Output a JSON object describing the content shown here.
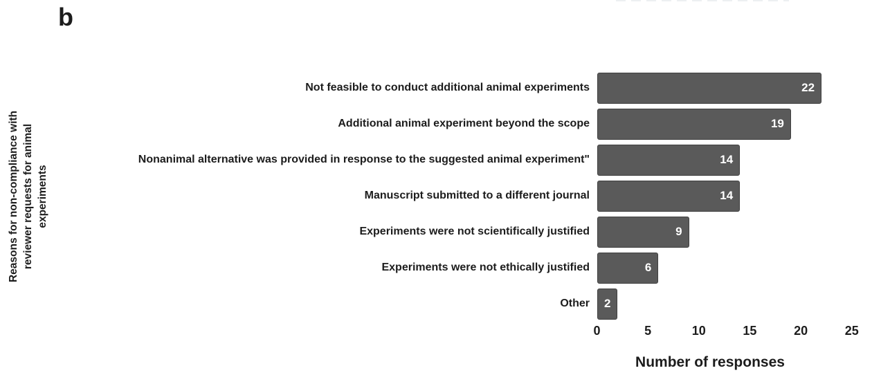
{
  "panel_label": "b",
  "colors": {
    "background": "#ffffff",
    "bar_fill": "#5a5a5a",
    "bar_border": "#3f3f3f",
    "text": "#1c1c1c",
    "value_label_text": "#ffffff"
  },
  "chart_data": {
    "type": "bar",
    "orientation": "horizontal",
    "categories": [
      "Not feasible to conduct additional animal experiments",
      "Additional animal experiment beyond the scope",
      "Nonanimal alternative was provided in response to the suggested animal experiment\"",
      "Manuscript submitted to a different journal",
      "Experiments were not scientifically justified",
      "Experiments were not ethically justified",
      "Other"
    ],
    "values": [
      22,
      19,
      14,
      14,
      9,
      6,
      2
    ],
    "bar_value_labels": [
      "22",
      "19",
      "14",
      "14",
      "9",
      "6",
      "2"
    ],
    "xlabel": "Number of responses",
    "ylabel": "Reasons for non-compliance with reviewer requests for animal experiments",
    "ylabel_lines": [
      "Reasons for non-compliance with",
      "reviewer requests for animal",
      "experiments"
    ],
    "xticks": [
      0,
      5,
      10,
      15,
      20,
      25
    ],
    "xlim": [
      0,
      25
    ],
    "grid": false,
    "legend": false,
    "value_labels_position": "inside-end"
  }
}
